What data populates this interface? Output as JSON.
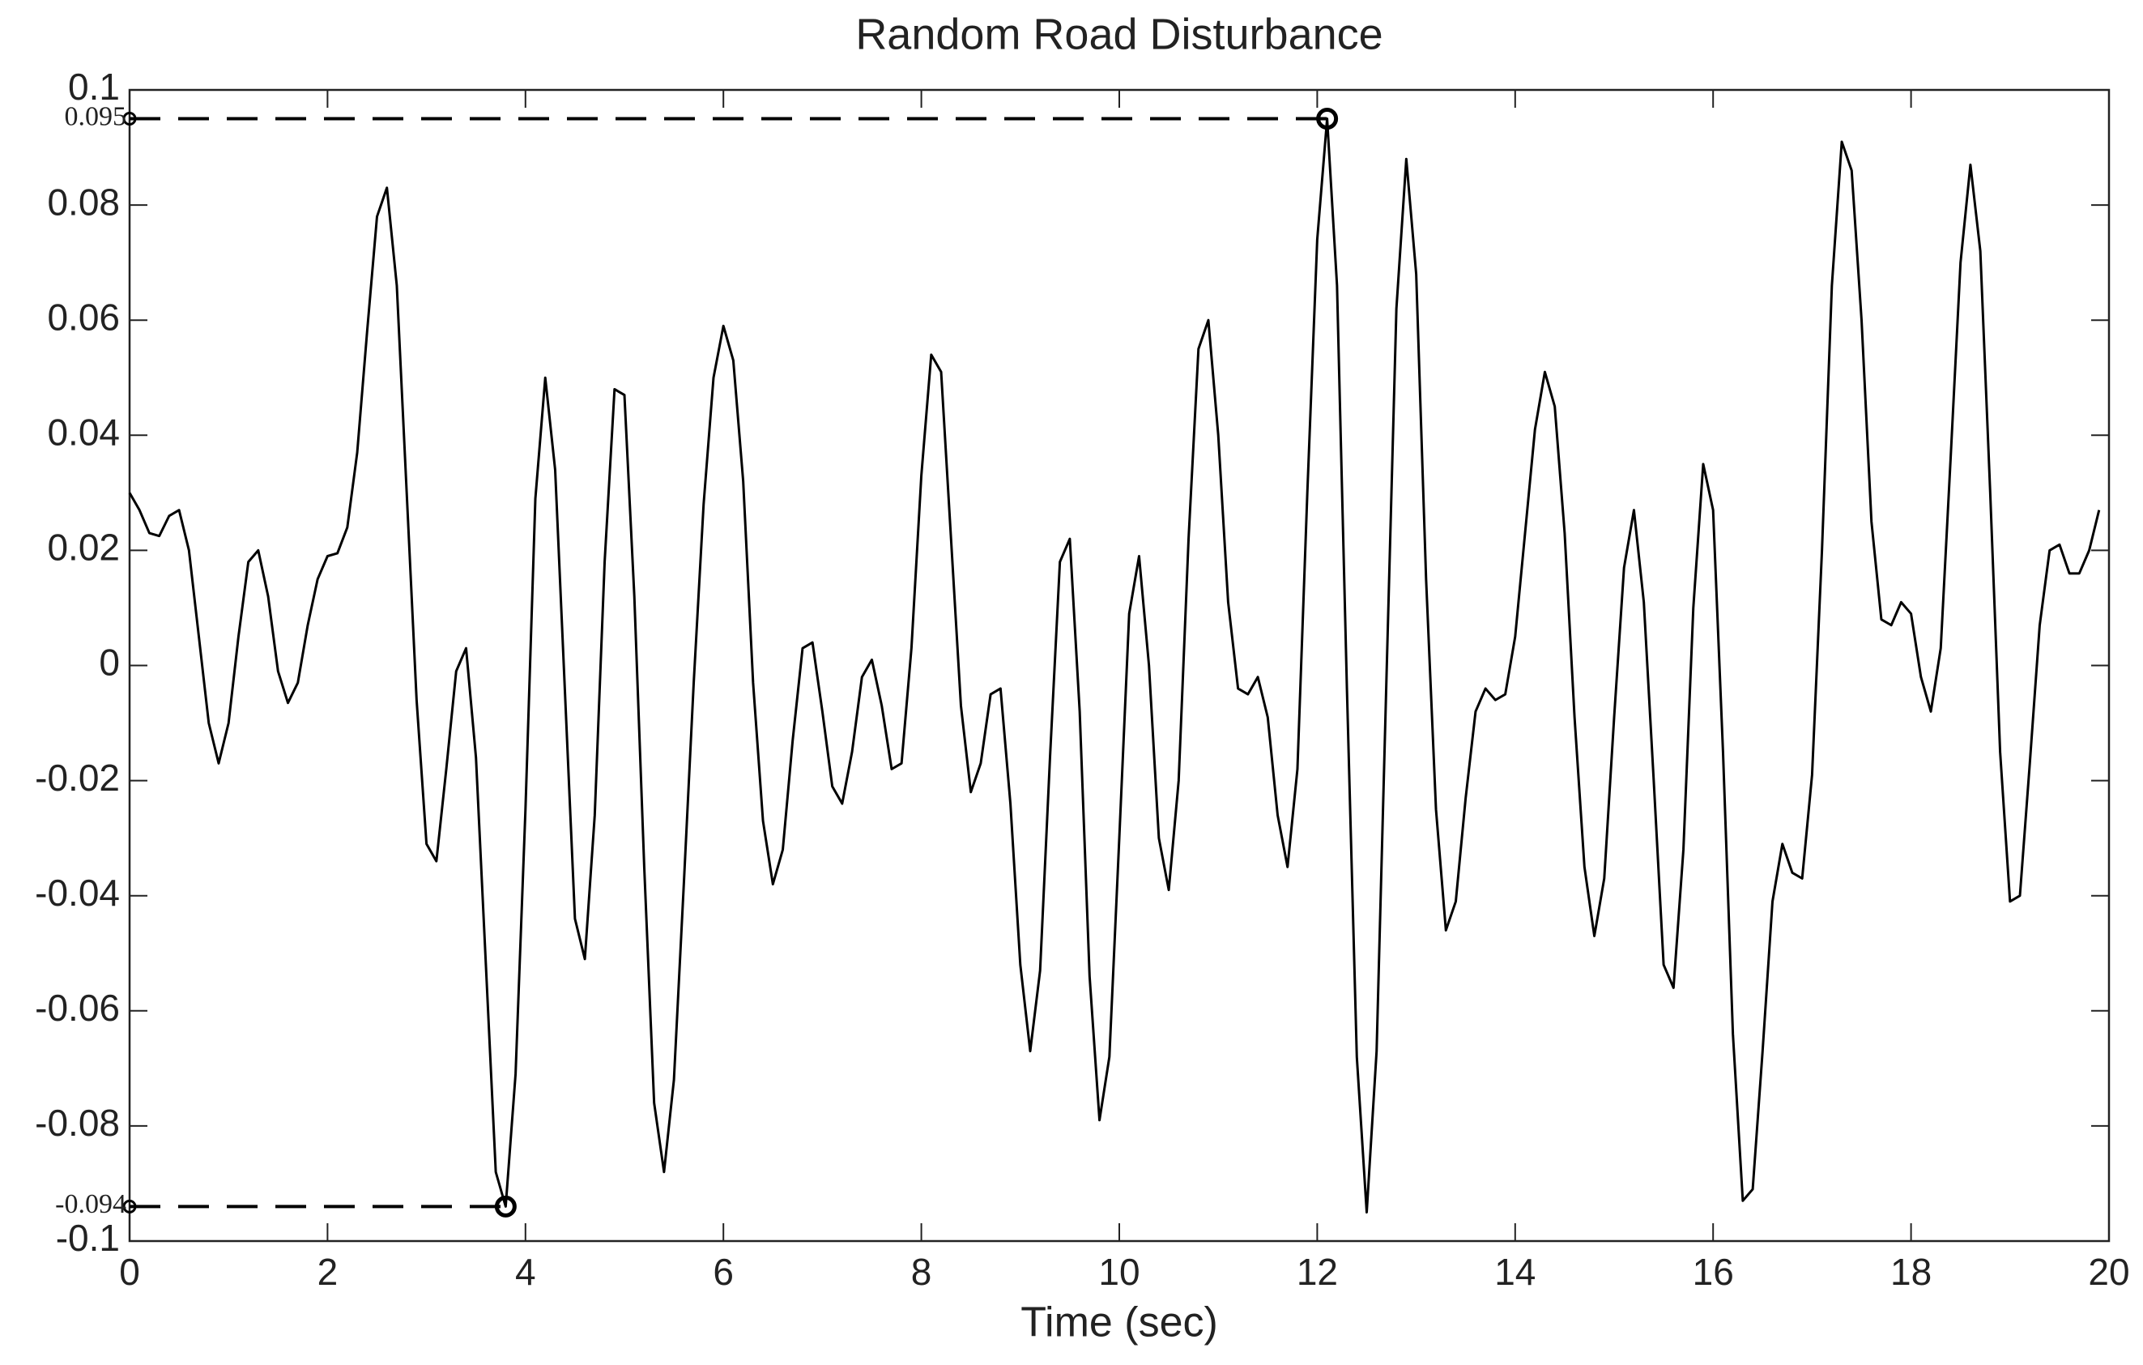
{
  "chart_data": {
    "type": "line",
    "title": "Random Road Disturbance",
    "xlabel": "Time (sec)",
    "color": "#000000",
    "xlim": [
      0,
      20
    ],
    "xticks": [
      0,
      2,
      4,
      6,
      8,
      10,
      12,
      14,
      16,
      18,
      20
    ],
    "ylim": [
      -0.1,
      0.1
    ],
    "yticks": [
      -0.1,
      -0.08,
      -0.06,
      -0.04,
      -0.02,
      0,
      0.02,
      0.04,
      0.06,
      0.08,
      0.1
    ],
    "x": [
      0,
      0.1,
      0.2,
      0.3,
      0.4,
      0.5,
      0.6,
      0.7,
      0.8,
      0.9,
      1,
      1.1,
      1.2,
      1.3,
      1.4,
      1.5,
      1.6,
      1.7,
      1.8,
      1.9,
      2,
      2.1,
      2.2,
      2.3,
      2.4,
      2.5,
      2.6,
      2.7,
      2.8,
      2.9,
      3,
      3.1,
      3.2,
      3.3,
      3.4,
      3.5,
      3.6,
      3.7,
      3.8,
      3.9,
      4,
      4.1,
      4.2,
      4.3,
      4.4,
      4.5,
      4.6,
      4.7,
      4.8,
      4.9,
      5,
      5.1,
      5.2,
      5.3,
      5.4,
      5.5,
      5.6,
      5.7,
      5.8,
      5.9,
      6,
      6.1,
      6.2,
      6.3,
      6.4,
      6.5,
      6.6,
      6.7,
      6.8,
      6.9,
      7,
      7.1,
      7.2,
      7.3,
      7.4,
      7.5,
      7.6,
      7.7,
      7.8,
      7.9,
      8,
      8.1,
      8.2,
      8.3,
      8.4,
      8.5,
      8.6,
      8.7,
      8.8,
      8.9,
      9,
      9.1,
      9.2,
      9.3,
      9.4,
      9.5,
      9.6,
      9.7,
      9.8,
      9.9,
      10,
      10.1,
      10.2,
      10.3,
      10.4,
      10.5,
      10.6,
      10.7,
      10.8,
      10.9,
      11,
      11.1,
      11.2,
      11.3,
      11.4,
      11.5,
      11.6,
      11.7,
      11.8,
      11.9,
      12,
      12.1,
      12.2,
      12.3,
      12.4,
      12.5,
      12.6,
      12.7,
      12.8,
      12.9,
      13,
      13.1,
      13.2,
      13.3,
      13.4,
      13.5,
      13.6,
      13.7,
      13.8,
      13.9,
      14,
      14.1,
      14.2,
      14.3,
      14.4,
      14.5,
      14.6,
      14.7,
      14.8,
      14.9,
      15,
      15.1,
      15.2,
      15.3,
      15.4,
      15.5,
      15.6,
      15.7,
      15.8,
      15.9,
      16,
      16.1,
      16.2,
      16.3,
      16.4,
      16.5,
      16.6,
      16.7,
      16.8,
      16.9,
      17,
      17.1,
      17.2,
      17.3,
      17.4,
      17.5,
      17.6,
      17.7,
      17.8,
      17.9,
      18,
      18.1,
      18.2,
      18.3,
      18.4,
      18.5,
      18.6,
      18.7,
      18.8,
      18.9,
      19,
      19.1,
      19.2,
      19.3,
      19.4,
      19.5,
      19.6,
      19.7,
      19.8,
      19.9
    ],
    "values": [
      0.03,
      0.027,
      0.023,
      0.0225,
      0.026,
      0.027,
      0.02,
      0.005,
      -0.01,
      -0.017,
      -0.01,
      0.005,
      0.018,
      0.02,
      0.012,
      -0.001,
      -0.0065,
      -0.003,
      0.007,
      0.015,
      0.019,
      0.0195,
      0.024,
      0.037,
      0.058,
      0.078,
      0.083,
      0.066,
      0.03,
      -0.006,
      -0.031,
      -0.034,
      -0.018,
      -0.001,
      0.003,
      -0.016,
      -0.052,
      -0.088,
      -0.094,
      -0.071,
      -0.025,
      0.029,
      0.05,
      0.034,
      -0.005,
      -0.044,
      -0.051,
      -0.026,
      0.018,
      0.048,
      0.047,
      0.012,
      -0.035,
      -0.076,
      -0.088,
      -0.072,
      -0.038,
      -0.003,
      0.028,
      0.05,
      0.059,
      0.053,
      0.032,
      -0.003,
      -0.027,
      -0.038,
      -0.032,
      -0.013,
      0.003,
      0.004,
      -0.008,
      -0.021,
      -0.024,
      -0.015,
      -0.002,
      0.001,
      -0.007,
      -0.018,
      -0.017,
      0.003,
      0.033,
      0.054,
      0.051,
      0.022,
      -0.007,
      -0.022,
      -0.017,
      -0.005,
      -0.004,
      -0.024,
      -0.052,
      -0.067,
      -0.053,
      -0.016,
      0.018,
      0.022,
      -0.008,
      -0.054,
      -0.079,
      -0.068,
      -0.03,
      0.009,
      0.019,
      0,
      -0.03,
      -0.039,
      -0.02,
      0.022,
      0.055,
      0.06,
      0.04,
      0.011,
      -0.004,
      -0.005,
      -0.002,
      -0.009,
      -0.026,
      -0.035,
      -0.018,
      0.03,
      0.074,
      0.095,
      0.066,
      -0.004,
      -0.068,
      -0.095,
      -0.067,
      -0.002,
      0.062,
      0.088,
      0.068,
      0.015,
      -0.025,
      -0.046,
      -0.041,
      -0.023,
      -0.008,
      -0.004,
      -0.006,
      -0.005,
      0.005,
      0.023,
      0.041,
      0.051,
      0.045,
      0.023,
      -0.009,
      -0.035,
      -0.047,
      -0.037,
      -0.009,
      0.017,
      0.027,
      0.011,
      -0.02,
      -0.052,
      -0.056,
      -0.032,
      0.01,
      0.035,
      0.027,
      -0.015,
      -0.064,
      -0.093,
      -0.091,
      -0.067,
      -0.041,
      -0.031,
      -0.036,
      -0.037,
      -0.019,
      0.02,
      0.066,
      0.091,
      0.086,
      0.06,
      0.025,
      0.008,
      0.007,
      0.011,
      0.009,
      -0.002,
      -0.008,
      0.003,
      0.036,
      0.07,
      0.087,
      0.072,
      0.03,
      -0.015,
      -0.041,
      -0.04,
      -0.017,
      0.007,
      0.02,
      0.021,
      0.016,
      0.016,
      0.02,
      0.027
    ],
    "annotations": [
      {
        "label": "0.095",
        "x": 12.1,
        "y": 0.095
      },
      {
        "label": "-0.094",
        "x": 3.8,
        "y": -0.094
      }
    ]
  }
}
